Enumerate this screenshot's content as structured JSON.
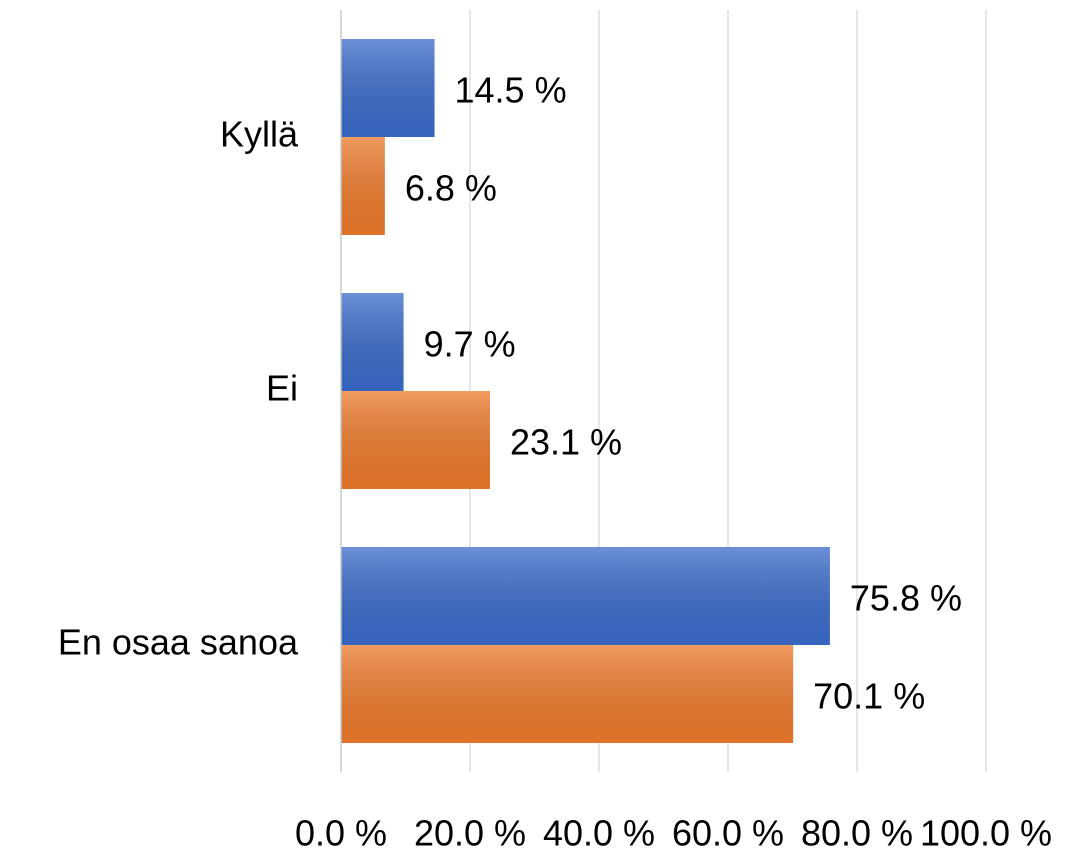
{
  "chart_data": {
    "type": "hbar",
    "categories": [
      "Kyllä",
      "Ei",
      "En osaa sanoa"
    ],
    "series": [
      {
        "color": "#3a6bc9",
        "values": [
          14.5,
          9.7,
          75.8
        ],
        "value_labels": [
          "14.5 %",
          "9.7 %",
          "75.8 %"
        ]
      },
      {
        "color": "#ec7a2c",
        "values": [
          6.8,
          23.1,
          70.1
        ],
        "value_labels": [
          "6.8 %",
          "23.1 %",
          "70.1 %"
        ]
      }
    ],
    "xlim": [
      0,
      100
    ],
    "xticks": [
      {
        "value": 0,
        "label": "0.0 %"
      },
      {
        "value": 20,
        "label": "20.0 %"
      },
      {
        "value": 40,
        "label": "40.0 %"
      },
      {
        "value": 60,
        "label": "60.0 %"
      },
      {
        "value": 80,
        "label": "80.0 %"
      },
      {
        "value": 100,
        "label": "100.0 %"
      }
    ],
    "grid": true
  }
}
